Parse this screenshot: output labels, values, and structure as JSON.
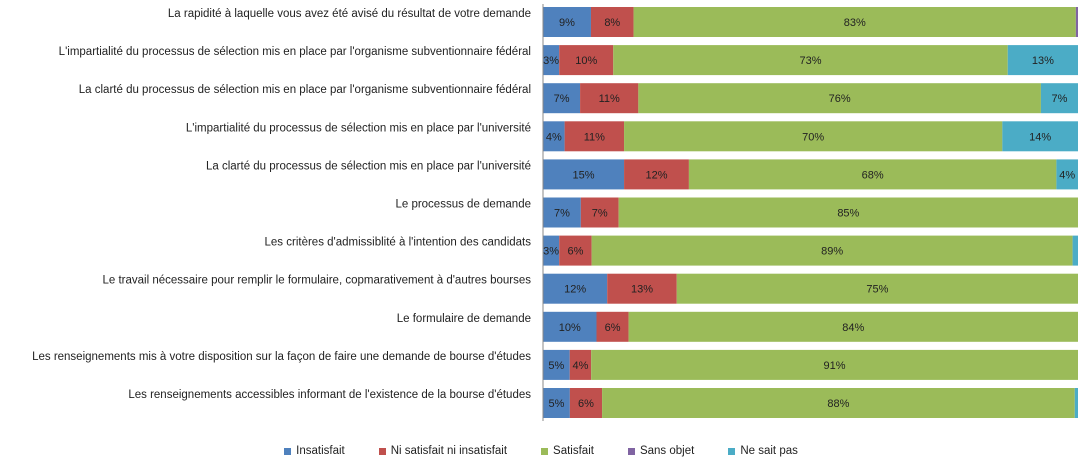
{
  "chart_data": {
    "type": "bar",
    "orientation": "horizontal",
    "stacked": true,
    "percent_stacked": true,
    "categories": [
      "La rapidité à laquelle vous avez été avisé du résultat de votre demande",
      "L'impartialité du processus de sélection mis en place par l'organisme subventionnaire fédéral",
      "La clarté du processus de sélection mis en place par l'organisme subventionnaire fédéral",
      "L'impartialité du processus de sélection mis en place par l'université",
      "La clarté du processus de sélection mis en place par l'université",
      "Le processus de demande",
      "Les critères d'admissiblité à l'intention des candidats",
      "Le travail nécessaire pour remplir le formulaire, copmarativement à d'autres bourses",
      "Le formulaire de demande",
      "Les renseignements mis à votre disposition sur la façon de faire une demande de bourse d'études",
      "Les renseignements accessibles informant de l'existence de la bourse d'études"
    ],
    "series": [
      {
        "name": "Insatisfait",
        "color": "#4f81bd",
        "values": [
          9,
          3,
          7,
          4,
          15,
          7,
          3,
          12,
          10,
          5,
          5
        ]
      },
      {
        "name": "Ni satisfait ni insatisfait",
        "color": "#c0504d",
        "values": [
          8,
          10,
          11,
          11,
          12,
          7,
          6,
          13,
          6,
          4,
          6
        ]
      },
      {
        "name": "Satisfait",
        "color": "#9bbb59",
        "values": [
          83,
          73,
          76,
          70,
          68,
          85,
          89,
          75,
          84,
          91,
          88
        ]
      },
      {
        "name": "Sans objet",
        "color": "#8064a2",
        "values": [
          0.4,
          0,
          0,
          0,
          0,
          0,
          0,
          0,
          0,
          0,
          0
        ]
      },
      {
        "name": "Ne sait pas",
        "color": "#4bacc6",
        "values": [
          0,
          13,
          7,
          14,
          4,
          0,
          1,
          0,
          0,
          0,
          0.6
        ]
      }
    ],
    "data_labels": [
      [
        "9%",
        "8%",
        "83%",
        "",
        ""
      ],
      [
        "3%",
        "10%",
        "73%",
        "",
        "13%"
      ],
      [
        "7%",
        "11%",
        "76%",
        "",
        "7%"
      ],
      [
        "4%",
        "11%",
        "70%",
        "",
        "14%"
      ],
      [
        "15%",
        "12%",
        "68%",
        "",
        "4%"
      ],
      [
        "7%",
        "7%",
        "85%",
        "",
        ""
      ],
      [
        "3%",
        "6%",
        "89%",
        "",
        ""
      ],
      [
        "12%",
        "13%",
        "75%",
        "",
        ""
      ],
      [
        "10%",
        "6%",
        "84%",
        "",
        ""
      ],
      [
        "5%",
        "4%",
        "91%",
        "",
        ""
      ],
      [
        "5%",
        "6%",
        "88%",
        "",
        ""
      ]
    ],
    "xlim": [
      0,
      100
    ],
    "legend_position": "bottom",
    "grid": false
  }
}
